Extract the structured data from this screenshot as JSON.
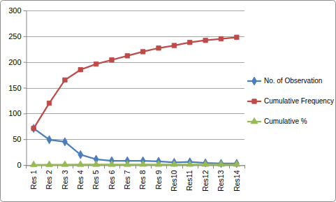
{
  "chart_data": {
    "type": "line",
    "categories": [
      "Res 1",
      "Res 2",
      "Res 3",
      "Res 4",
      "Res 5",
      "Res 6",
      "Res 7",
      "Res 8",
      "Res 9",
      "Res10",
      "Res11",
      "Res12",
      "Res13",
      "Res14"
    ],
    "series": [
      {
        "name": "No. of Observation",
        "color": "#4a7ebb",
        "marker": "diamond",
        "values": [
          71,
          49,
          45,
          20,
          11,
          8,
          8,
          8,
          7,
          5,
          6,
          4,
          3,
          3
        ]
      },
      {
        "name": "Cumulative Frequency",
        "color": "#be4b48",
        "marker": "square",
        "values": [
          71,
          120,
          165,
          185,
          196,
          204,
          212,
          220,
          227,
          232,
          238,
          242,
          245,
          248
        ]
      },
      {
        "name": "Cumulative %",
        "color": "#98b954",
        "marker": "triangle",
        "values": [
          0.29,
          0.48,
          0.67,
          0.75,
          0.79,
          0.82,
          0.85,
          0.89,
          0.92,
          0.94,
          0.96,
          0.98,
          0.99,
          1.0
        ]
      }
    ],
    "ylim": [
      0,
      300
    ],
    "yticks": [
      0,
      50,
      100,
      150,
      200,
      250,
      300
    ],
    "grid": true,
    "legend": "right"
  }
}
